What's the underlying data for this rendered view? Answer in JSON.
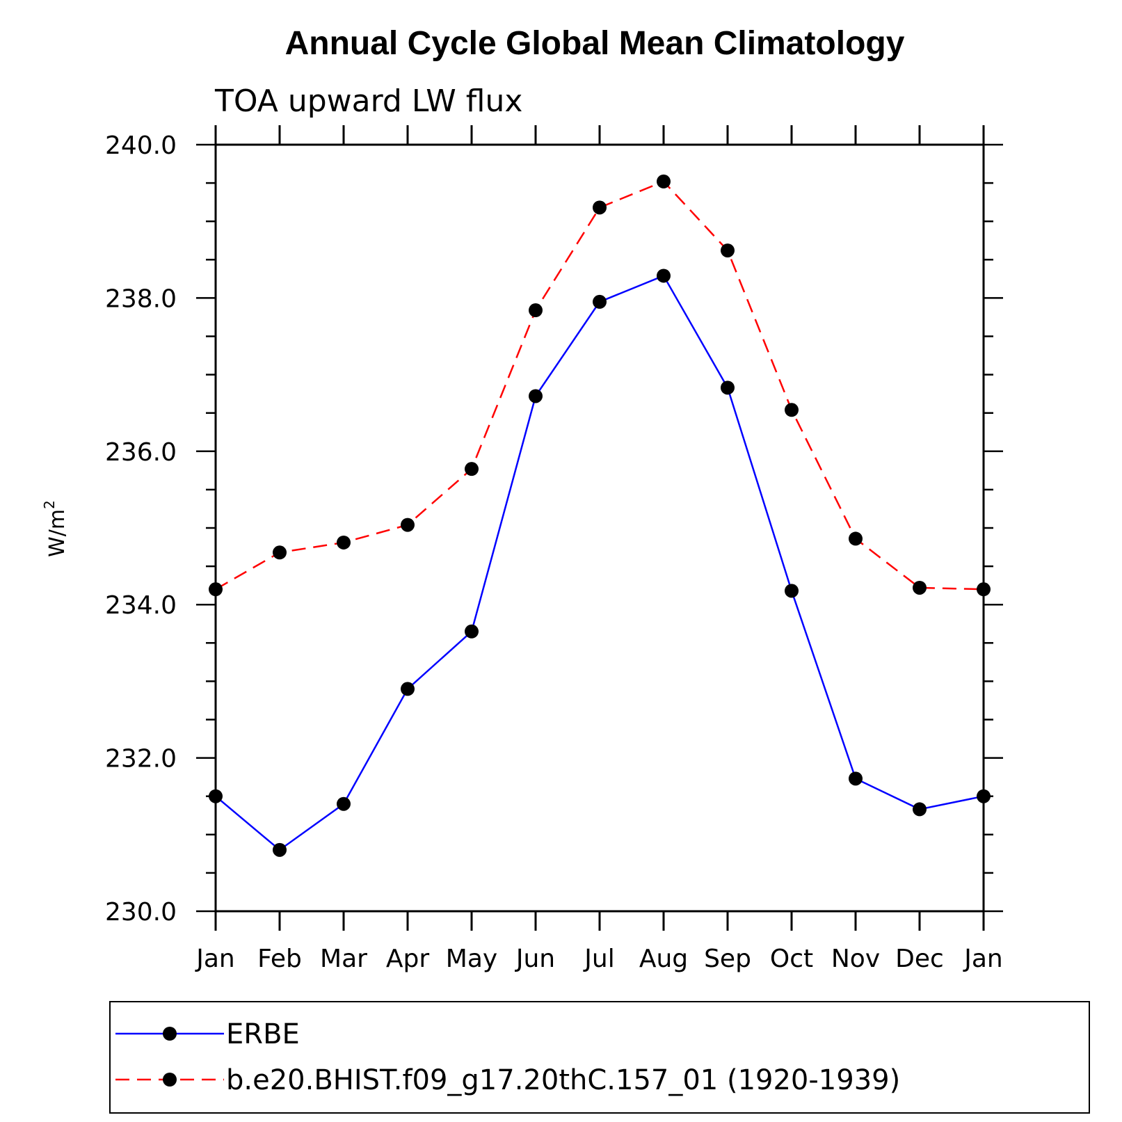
{
  "chart_data": {
    "type": "line",
    "title": "Annual Cycle Global Mean Climatology",
    "subtitle": "TOA upward LW flux",
    "ylabel": "W/m",
    "ylabel_superscript": "2",
    "categories": [
      "Jan",
      "Feb",
      "Mar",
      "Apr",
      "May",
      "Jun",
      "Jul",
      "Aug",
      "Sep",
      "Oct",
      "Nov",
      "Dec",
      "Jan"
    ],
    "ylim": [
      230.0,
      240.0
    ],
    "yticks": [
      "230.0",
      "232.0",
      "234.0",
      "236.0",
      "238.0",
      "240.0"
    ],
    "grid": false,
    "legend_position": "bottom",
    "series": [
      {
        "name": "ERBE",
        "color": "#0000ff",
        "line_style": "solid",
        "marker": "circle",
        "values": [
          231.5,
          230.8,
          231.4,
          232.9,
          233.65,
          236.72,
          237.95,
          238.29,
          236.83,
          234.18,
          231.73,
          231.33,
          231.5
        ]
      },
      {
        "name": "b.e20.BHIST.f09_g17.20thC.157_01 (1920-1939)",
        "color": "#ff0000",
        "line_style": "dashed",
        "marker": "circle",
        "values": [
          234.2,
          234.68,
          234.81,
          235.04,
          235.77,
          237.84,
          239.18,
          239.52,
          238.62,
          236.54,
          234.86,
          234.22,
          234.2
        ]
      }
    ]
  }
}
